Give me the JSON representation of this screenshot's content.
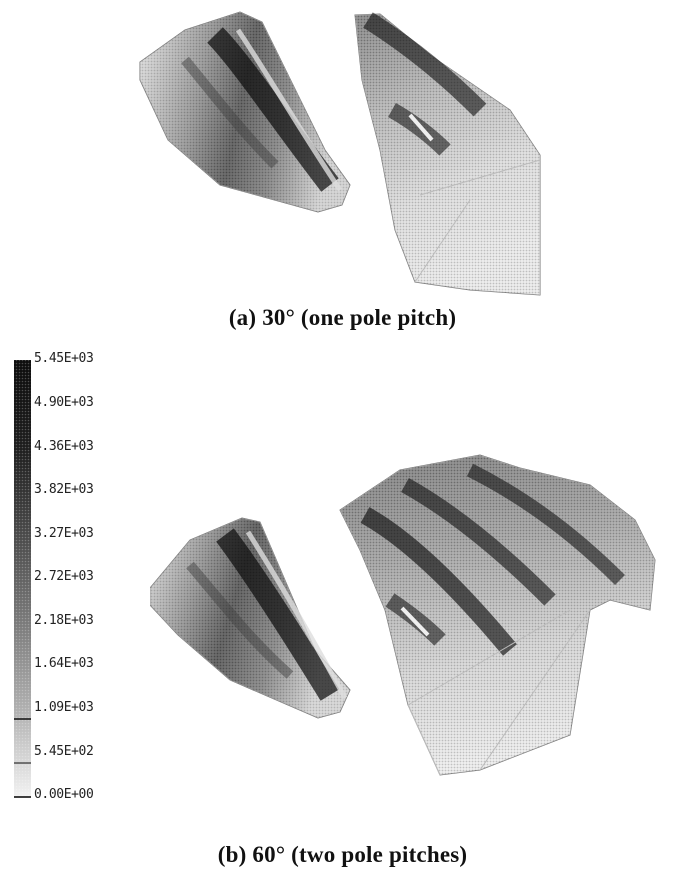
{
  "figure": {
    "caption_a": {
      "label": "(a)",
      "text": "30° (one pole pitch)"
    },
    "caption_b": {
      "label": "(b)",
      "text": "60° (two pole pitches)"
    }
  },
  "legend": {
    "values": [
      "5.45E+03",
      "4.90E+03",
      "4.36E+03",
      "3.82E+03",
      "3.27E+03",
      "2.72E+03",
      "2.18E+03",
      "1.64E+03",
      "1.09E+03",
      "5.45E+02",
      "0.00E+00"
    ]
  },
  "colors": {
    "scale_max": "#111111",
    "scale_min": "#f2f2f2",
    "background": "#ffffff"
  }
}
